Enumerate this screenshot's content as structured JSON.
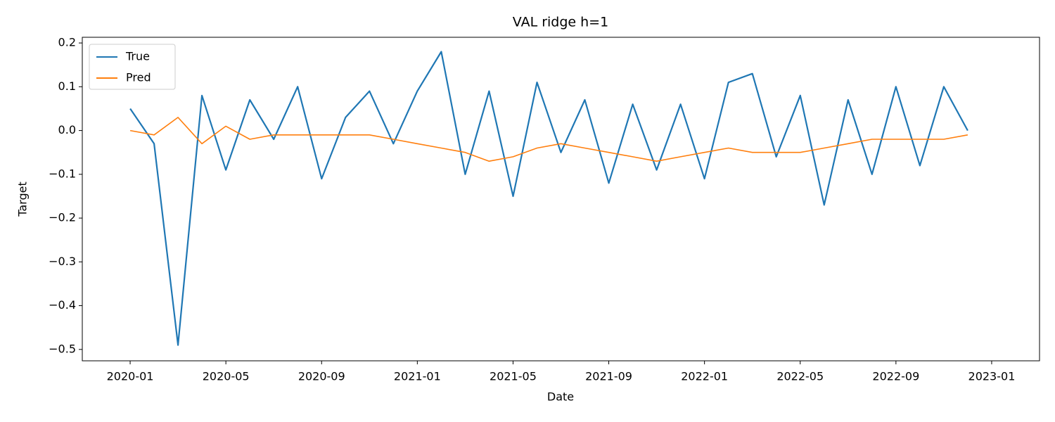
{
  "chart_data": {
    "type": "line",
    "title": "VAL ridge h=1",
    "x_label": "Date",
    "y_label": "Target",
    "x": [
      "2020-01",
      "2020-02",
      "2020-03",
      "2020-04",
      "2020-05",
      "2020-06",
      "2020-07",
      "2020-08",
      "2020-09",
      "2020-10",
      "2020-11",
      "2020-12",
      "2021-01",
      "2021-02",
      "2021-03",
      "2021-04",
      "2021-05",
      "2021-06",
      "2021-07",
      "2021-08",
      "2021-09",
      "2021-10",
      "2021-11",
      "2021-12",
      "2022-01",
      "2022-02",
      "2022-03",
      "2022-04",
      "2022-05",
      "2022-06",
      "2022-07",
      "2022-08",
      "2022-09",
      "2022-10",
      "2022-11",
      "2022-12"
    ],
    "series": [
      {
        "name": "True",
        "color": "#1f77b4",
        "values": [
          0.05,
          -0.03,
          -0.49,
          0.08,
          -0.09,
          0.07,
          -0.02,
          0.1,
          -0.11,
          0.03,
          0.09,
          -0.03,
          0.09,
          0.18,
          -0.1,
          0.09,
          -0.15,
          0.11,
          -0.05,
          0.07,
          -0.12,
          0.06,
          -0.09,
          0.06,
          -0.11,
          0.11,
          0.13,
          -0.06,
          0.08,
          -0.17,
          0.07,
          -0.1,
          0.1,
          -0.08,
          0.1,
          0.0
        ]
      },
      {
        "name": "Pred",
        "color": "#ff7f0e",
        "values": [
          0.0,
          -0.01,
          0.03,
          -0.03,
          0.01,
          -0.02,
          -0.01,
          -0.01,
          -0.01,
          -0.01,
          -0.01,
          -0.02,
          -0.03,
          -0.04,
          -0.05,
          -0.07,
          -0.06,
          -0.04,
          -0.03,
          -0.04,
          -0.05,
          -0.06,
          -0.07,
          -0.06,
          -0.05,
          -0.04,
          -0.05,
          -0.05,
          -0.05,
          -0.04,
          -0.03,
          -0.02,
          -0.02,
          -0.02,
          -0.02,
          -0.01
        ]
      }
    ],
    "xlim": [
      "2019-11",
      "2023-03"
    ],
    "xticks": [
      "2020-01",
      "2020-05",
      "2020-09",
      "2021-01",
      "2021-05",
      "2021-09",
      "2022-01",
      "2022-05",
      "2022-09",
      "2023-01"
    ],
    "ylim": [
      -0.526,
      0.213
    ],
    "yticks": [
      {
        "value": -0.5,
        "label": "−0.5"
      },
      {
        "value": -0.4,
        "label": "−0.4"
      },
      {
        "value": -0.3,
        "label": "−0.3"
      },
      {
        "value": -0.2,
        "label": "−0.2"
      },
      {
        "value": -0.1,
        "label": "−0.1"
      },
      {
        "value": 0,
        "label": "0.0"
      },
      0.1,
      0.2
    ],
    "legend": "upper left",
    "grid": false
  }
}
